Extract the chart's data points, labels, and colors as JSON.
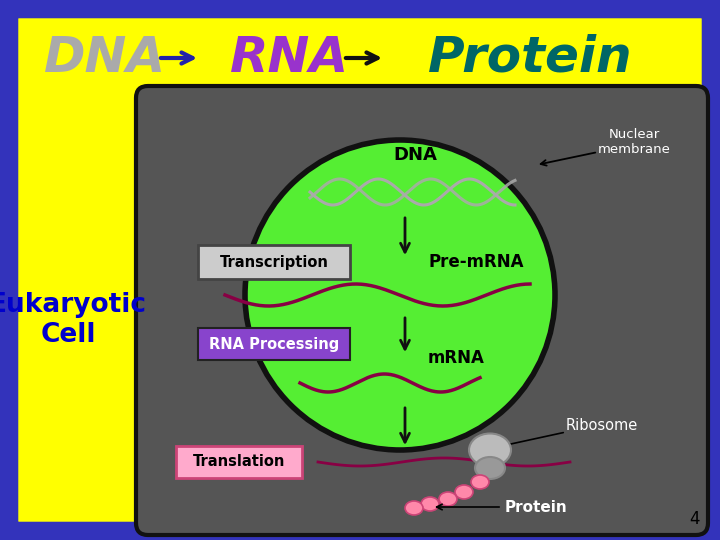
{
  "bg_color": "#FFFF00",
  "border_color": "#3333BB",
  "title_dna_text": "DNA",
  "title_dna_color": "#AAAAAA",
  "title_arrow1_color": "#2222AA",
  "title_rna_text": "RNA",
  "title_rna_color": "#9933CC",
  "title_arrow2_color": "#111111",
  "title_protein_text": "Protein",
  "title_protein_color": "#006666",
  "cell_box_color": "#555555",
  "nucleus_color": "#55EE33",
  "nucleus_edge": "#111111",
  "label_dna": "DNA",
  "label_nuclear": "Nuclear\nmembrane",
  "label_transcription": "Transcription",
  "label_pre_mrna": "Pre-mRNA",
  "label_rna_processing": "RNA Processing",
  "label_mrna": "mRNA",
  "label_ribosome": "Ribosome",
  "label_translation": "Translation",
  "label_protein": "Protein",
  "label_eukaryotic": "Eukaryotic\nCell",
  "page_num": "4",
  "arrow_color": "#111111",
  "dna_wave_color": "#AAAAAA",
  "pre_mrna_color": "#880044",
  "mrna_color": "#880044",
  "ribosome_color_gray": "#AAAAAA",
  "protein_color": "#FF88AA",
  "transcription_box_bg": "#CCCCCC",
  "transcription_box_edge": "#555555",
  "rna_processing_box_bg": "#8844CC",
  "rna_processing_box_edge": "#222222",
  "translation_box_bg": "#FFAACC",
  "translation_box_edge": "#AA4466"
}
